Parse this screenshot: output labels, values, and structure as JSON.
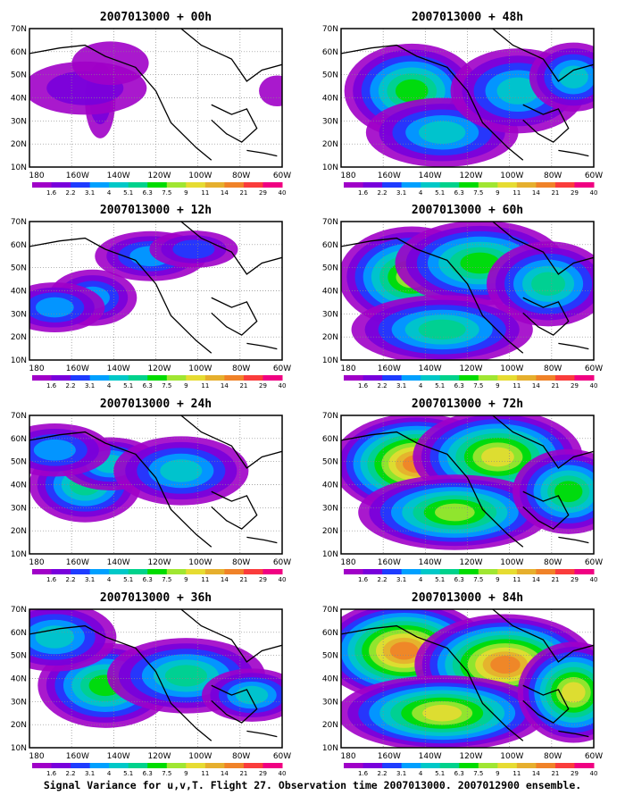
{
  "panels": [
    {
      "title": "2007013000 + 00h",
      "lead": "00h",
      "level": 0.12
    },
    {
      "title": "2007013000 + 12h",
      "lead": "12h",
      "level": 0.35
    },
    {
      "title": "2007013000 + 24h",
      "lead": "24h",
      "level": 0.5
    },
    {
      "title": "2007013000 + 36h",
      "lead": "36h",
      "level": 0.62
    },
    {
      "title": "2007013000 + 48h",
      "lead": "48h",
      "level": 0.6
    },
    {
      "title": "2007013000 + 60h",
      "lead": "60h",
      "level": 0.7
    },
    {
      "title": "2007013000 + 72h",
      "lead": "72h",
      "level": 0.8
    },
    {
      "title": "2007013000 + 84h",
      "lead": "84h",
      "level": 0.88
    }
  ],
  "lon_ticks": [
    "180",
    "160W",
    "140W",
    "120W",
    "100W",
    "80W",
    "60W"
  ],
  "lat_ticks": [
    "70N",
    "60N",
    "50N",
    "40N",
    "30N",
    "20N",
    "10N"
  ],
  "colorbar": {
    "labels": [
      "1.6",
      "2.2",
      "3.1",
      "4",
      "5.1",
      "6.3",
      "7.5",
      "9",
      "11",
      "14",
      "21",
      "29",
      "40"
    ],
    "colors": [
      "#ffffff",
      "#a000c8",
      "#7800dc",
      "#1e3cff",
      "#00a0ff",
      "#00c8c8",
      "#00d28c",
      "#00dc00",
      "#a0e632",
      "#e6dc32",
      "#e6af2d",
      "#f08228",
      "#fa3c3c",
      "#f00082"
    ]
  },
  "caption": "Signal Variance for u,v,T. Flight 27. Observation time 2007013000. 2007012900 ensemble."
}
